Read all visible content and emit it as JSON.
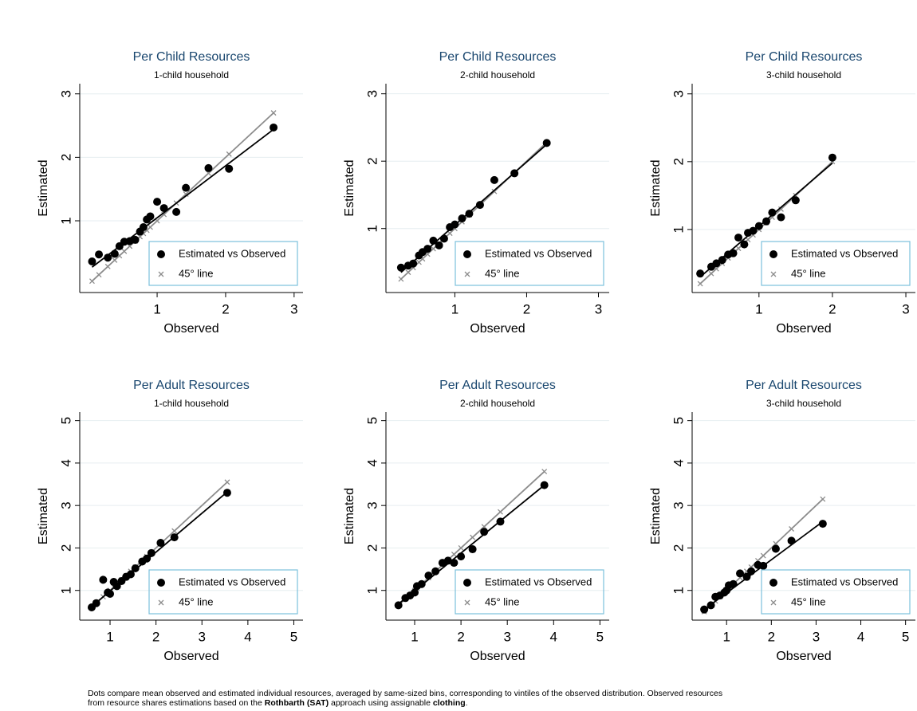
{
  "chart_data": [
    {
      "type": "scatter",
      "title": "Per Child Resources",
      "subtitle": "1-child household",
      "xlabel": "Observed",
      "ylabel": "Estimated",
      "xlim": [
        -0.13,
        3.13
      ],
      "ylim": [
        -0.13,
        3.16
      ],
      "xticks": [
        1,
        2,
        3
      ],
      "yticks": [
        1,
        2,
        3
      ],
      "grid": true,
      "legend": "lower right",
      "series": [
        {
          "name": "Estimated vs Observed",
          "color": "#000000",
          "x": [
            0.05,
            0.15,
            0.28,
            0.38,
            0.45,
            0.52,
            0.6,
            0.68,
            0.75,
            0.8,
            0.85,
            0.9,
            1.0,
            1.1,
            1.28,
            1.42,
            1.75,
            2.05,
            2.7
          ],
          "values": [
            0.36,
            0.47,
            0.42,
            0.48,
            0.6,
            0.67,
            0.68,
            0.7,
            0.83,
            0.9,
            1.02,
            1.07,
            1.3,
            1.2,
            1.14,
            1.52,
            1.83,
            1.82,
            2.47
          ]
        },
        {
          "name": "45° line",
          "color": "#8c8c8c",
          "x": [
            0.05,
            0.15,
            0.28,
            0.38,
            0.45,
            0.52,
            0.6,
            0.68,
            0.75,
            0.8,
            0.85,
            0.9,
            1.0,
            1.1,
            1.28,
            1.42,
            1.75,
            2.05,
            2.7
          ],
          "values": [
            0.05,
            0.15,
            0.28,
            0.38,
            0.45,
            0.52,
            0.6,
            0.68,
            0.75,
            0.8,
            0.85,
            0.9,
            1.0,
            1.1,
            1.28,
            1.42,
            1.75,
            2.05,
            2.7
          ]
        }
      ],
      "fit": {
        "color": "#000000",
        "x": [
          0.05,
          2.7
        ],
        "values": [
          0.27,
          2.44
        ]
      }
    },
    {
      "type": "scatter",
      "title": "Per Child Resources",
      "subtitle": "2-child household",
      "xlabel": "Observed",
      "ylabel": "Estimated",
      "xlim": [
        0.04,
        3.15
      ],
      "ylim": [
        0.05,
        3.15
      ],
      "xticks": [
        1,
        2,
        3
      ],
      "yticks": [
        1,
        2,
        3
      ],
      "grid": true,
      "legend": "lower right",
      "series": [
        {
          "name": "Estimated vs Observed",
          "color": "#000000",
          "x": [
            0.25,
            0.35,
            0.42,
            0.5,
            0.55,
            0.62,
            0.7,
            0.78,
            0.85,
            0.93,
            1.0,
            1.1,
            1.2,
            1.35,
            1.55,
            1.83,
            2.28
          ],
          "values": [
            0.42,
            0.45,
            0.48,
            0.6,
            0.65,
            0.7,
            0.82,
            0.75,
            0.85,
            1.02,
            1.06,
            1.15,
            1.22,
            1.35,
            1.72,
            1.82,
            2.27
          ]
        },
        {
          "name": "45° line",
          "color": "#8c8c8c",
          "x": [
            0.25,
            0.35,
            0.42,
            0.5,
            0.55,
            0.62,
            0.7,
            0.78,
            0.85,
            0.93,
            1.0,
            1.1,
            1.2,
            1.35,
            1.55,
            1.83,
            2.28
          ],
          "values": [
            0.25,
            0.35,
            0.42,
            0.5,
            0.55,
            0.62,
            0.7,
            0.78,
            0.85,
            0.93,
            1.0,
            1.1,
            1.2,
            1.35,
            1.55,
            1.83,
            2.28
          ]
        }
      ],
      "fit": {
        "color": "#000000",
        "x": [
          0.25,
          2.28
        ],
        "values": [
          0.35,
          2.25
        ]
      }
    },
    {
      "type": "scatter",
      "title": "Per Child Resources",
      "subtitle": "3-child household",
      "xlabel": "Observed",
      "ylabel": "Estimated",
      "xlim": [
        0.09,
        3.13
      ],
      "ylim": [
        0.07,
        3.15
      ],
      "xticks": [
        1,
        2,
        3
      ],
      "yticks": [
        1,
        2,
        3
      ],
      "grid": true,
      "legend": "lower right",
      "series": [
        {
          "name": "Estimated vs Observed",
          "color": "#000000",
          "x": [
            0.2,
            0.35,
            0.42,
            0.5,
            0.58,
            0.65,
            0.72,
            0.8,
            0.85,
            0.92,
            1.0,
            1.1,
            1.18,
            1.3,
            1.5,
            2.0
          ],
          "values": [
            0.35,
            0.45,
            0.5,
            0.55,
            0.63,
            0.65,
            0.88,
            0.78,
            0.95,
            0.98,
            1.05,
            1.12,
            1.25,
            1.18,
            1.43,
            2.06
          ]
        },
        {
          "name": "45° line",
          "color": "#8c8c8c",
          "x": [
            0.2,
            0.35,
            0.42,
            0.5,
            0.58,
            0.65,
            0.72,
            0.8,
            0.85,
            0.92,
            1.0,
            1.1,
            1.18,
            1.3,
            1.5,
            2.0
          ],
          "values": [
            0.2,
            0.35,
            0.42,
            0.5,
            0.58,
            0.65,
            0.72,
            0.8,
            0.85,
            0.92,
            1.0,
            1.1,
            1.18,
            1.3,
            1.5,
            2.0
          ]
        }
      ],
      "fit": {
        "color": "#000000",
        "x": [
          0.2,
          2.0
        ],
        "values": [
          0.3,
          1.98
        ]
      }
    },
    {
      "type": "scatter",
      "title": "Per Adult Resources",
      "subtitle": "1-child household",
      "xlabel": "Observed",
      "ylabel": "Estimated",
      "xlim": [
        0.34,
        5.2
      ],
      "ylim": [
        0.3,
        5.2
      ],
      "xticks": [
        1,
        2,
        3,
        4,
        5
      ],
      "yticks": [
        1,
        2,
        3,
        4,
        5
      ],
      "grid": true,
      "legend": "lower right",
      "series": [
        {
          "name": "Estimated vs Observed",
          "color": "#000000",
          "x": [
            0.6,
            0.7,
            0.85,
            0.95,
            1.0,
            1.08,
            1.15,
            1.25,
            1.35,
            1.45,
            1.55,
            1.7,
            1.8,
            1.9,
            2.1,
            2.4,
            3.55
          ],
          "values": [
            0.6,
            0.7,
            1.25,
            0.95,
            0.92,
            1.2,
            1.1,
            1.22,
            1.32,
            1.38,
            1.52,
            1.68,
            1.75,
            1.88,
            2.12,
            2.25,
            3.3
          ]
        },
        {
          "name": "45° line",
          "color": "#8c8c8c",
          "x": [
            0.6,
            0.7,
            0.85,
            0.95,
            1.0,
            1.08,
            1.15,
            1.25,
            1.35,
            1.45,
            1.55,
            1.7,
            1.8,
            1.9,
            2.1,
            2.4,
            3.55
          ],
          "values": [
            0.6,
            0.7,
            0.85,
            0.95,
            1.0,
            1.08,
            1.15,
            1.25,
            1.35,
            1.45,
            1.55,
            1.7,
            1.8,
            1.9,
            2.1,
            2.4,
            3.55
          ]
        }
      ],
      "fit": {
        "color": "#000000",
        "x": [
          0.6,
          3.55
        ],
        "values": [
          0.62,
          3.32
        ]
      }
    },
    {
      "type": "scatter",
      "title": "Per Adult Resources",
      "subtitle": "2-child household",
      "xlabel": "Observed",
      "ylabel": "Estimated",
      "xlim": [
        0.38,
        5.2
      ],
      "ylim": [
        0.3,
        5.2
      ],
      "xticks": [
        1,
        2,
        3,
        4,
        5
      ],
      "yticks": [
        1,
        2,
        3,
        4,
        5
      ],
      "grid": true,
      "legend": "lower right",
      "series": [
        {
          "name": "Estimated vs Observed",
          "color": "#000000",
          "x": [
            0.65,
            0.8,
            0.9,
            1.0,
            1.05,
            1.15,
            1.3,
            1.45,
            1.6,
            1.72,
            1.85,
            2.0,
            2.25,
            2.5,
            2.85,
            3.8
          ],
          "values": [
            0.65,
            0.82,
            0.88,
            0.95,
            1.1,
            1.15,
            1.35,
            1.45,
            1.65,
            1.7,
            1.65,
            1.8,
            1.97,
            2.38,
            2.62,
            3.48
          ]
        },
        {
          "name": "45° line",
          "color": "#8c8c8c",
          "x": [
            0.65,
            0.8,
            0.9,
            1.0,
            1.05,
            1.15,
            1.3,
            1.45,
            1.6,
            1.72,
            1.85,
            2.0,
            2.25,
            2.5,
            2.85,
            3.8
          ],
          "values": [
            0.65,
            0.8,
            0.9,
            1.0,
            1.05,
            1.15,
            1.3,
            1.45,
            1.6,
            1.72,
            1.85,
            2.0,
            2.25,
            2.5,
            2.85,
            3.8
          ]
        }
      ],
      "fit": {
        "color": "#000000",
        "x": [
          0.65,
          3.8
        ],
        "values": [
          0.68,
          3.48
        ]
      }
    },
    {
      "type": "scatter",
      "title": "Per Adult Resources",
      "subtitle": "3-child household",
      "xlabel": "Observed",
      "ylabel": "Estimated",
      "xlim": [
        0.23,
        5.22
      ],
      "ylim": [
        0.3,
        5.2
      ],
      "xticks": [
        1,
        2,
        3,
        4,
        5
      ],
      "yticks": [
        1,
        2,
        3,
        4,
        5
      ],
      "grid": true,
      "legend": "lower right",
      "series": [
        {
          "name": "Estimated vs Observed",
          "color": "#000000",
          "x": [
            0.5,
            0.65,
            0.75,
            0.85,
            0.95,
            1.0,
            1.05,
            1.15,
            1.3,
            1.45,
            1.55,
            1.7,
            1.82,
            2.1,
            2.45,
            3.15
          ],
          "values": [
            0.55,
            0.65,
            0.85,
            0.88,
            0.95,
            1.0,
            1.12,
            1.15,
            1.4,
            1.32,
            1.45,
            1.6,
            1.58,
            1.98,
            2.17,
            2.57
          ]
        },
        {
          "name": "45° line",
          "color": "#8c8c8c",
          "x": [
            0.5,
            0.65,
            0.75,
            0.85,
            0.95,
            1.0,
            1.05,
            1.15,
            1.3,
            1.45,
            1.55,
            1.7,
            1.82,
            2.1,
            2.45,
            3.15
          ],
          "values": [
            0.5,
            0.65,
            0.75,
            0.85,
            0.95,
            1.0,
            1.05,
            1.15,
            1.3,
            1.45,
            1.55,
            1.7,
            1.82,
            2.1,
            2.45,
            3.15
          ]
        }
      ],
      "fit": {
        "color": "#000000",
        "x": [
          0.5,
          3.15
        ],
        "values": [
          0.55,
          2.62
        ]
      }
    }
  ],
  "note": {
    "line1": "Dots compare mean observed and estimated individual resources, averaged by same-sized bins, corresponding to vintiles of the observed distribution. Observed resources",
    "line2": [
      "from resource shares estimations based on the ",
      "Rothbarth (SAT)",
      " approach using assignable ",
      "clothing",
      "."
    ]
  }
}
